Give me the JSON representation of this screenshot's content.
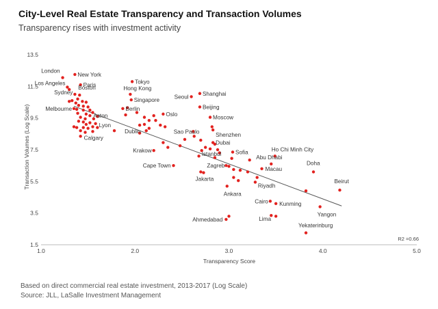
{
  "chart_data": {
    "type": "scatter",
    "title": "City-Level Real Estate Transparency and Transaction Volumes",
    "subtitle": "Transparency rises with investment activity",
    "xlabel": "Transparency Score",
    "ylabel": "Transaction Volumes (Log Scale)",
    "xlim": [
      1.0,
      5.0
    ],
    "ylim": [
      1.5,
      13.5
    ],
    "x_ticks": [
      "1.0",
      "2.0",
      "3.0",
      "4.0",
      "5.0"
    ],
    "y_ticks": [
      "1.5",
      "3.5",
      "5.5",
      "7.5",
      "9.5",
      "11.5",
      "13.5"
    ],
    "grid": false,
    "r2_label": "R2 =0.66",
    "trendline": {
      "x": [
        1.35,
        4.2
      ],
      "y": [
        10.25,
        3.95
      ]
    },
    "labeled_points": [
      {
        "name": "London",
        "x": 1.23,
        "y": 12.05
      },
      {
        "name": "New York",
        "x": 1.36,
        "y": 12.25
      },
      {
        "name": "Los Angeles",
        "x": 1.28,
        "y": 11.45
      },
      {
        "name": "Paris",
        "x": 1.42,
        "y": 11.6
      },
      {
        "name": "Sydney",
        "x": 1.36,
        "y": 11.0
      },
      {
        "name": "Boston",
        "x": 1.41,
        "y": 10.95
      },
      {
        "name": "Melbourne",
        "x": 1.35,
        "y": 10.1
      },
      {
        "name": "Aston",
        "x": 1.52,
        "y": 9.65
      },
      {
        "name": "Calgary",
        "x": 1.42,
        "y": 8.35
      },
      {
        "name": "Lyon",
        "x": 1.78,
        "y": 8.7
      },
      {
        "name": "Tokyo",
        "x": 1.97,
        "y": 11.8
      },
      {
        "name": "Hong Kong",
        "x": 1.95,
        "y": 11.0
      },
      {
        "name": "Singapore",
        "x": 1.96,
        "y": 10.65
      },
      {
        "name": "Berlin",
        "x": 1.87,
        "y": 10.1
      },
      {
        "name": "Dublin",
        "x": 2.05,
        "y": 9.05
      },
      {
        "name": "Oslo",
        "x": 2.3,
        "y": 9.75
      },
      {
        "name": "Seoul",
        "x": 2.6,
        "y": 10.85
      },
      {
        "name": "Shanghai",
        "x": 2.69,
        "y": 11.05
      },
      {
        "name": "Beijing",
        "x": 2.69,
        "y": 10.2
      },
      {
        "name": "Moscow",
        "x": 2.8,
        "y": 9.55
      },
      {
        "name": "Shenzhen",
        "x": 2.83,
        "y": 8.75
      },
      {
        "name": "Sao Paulo",
        "x": 2.63,
        "y": 8.35
      },
      {
        "name": "Dubai",
        "x": 2.83,
        "y": 7.95
      },
      {
        "name": "Krakow",
        "x": 2.2,
        "y": 7.45
      },
      {
        "name": "Istanbul",
        "x": 2.71,
        "y": 7.45
      },
      {
        "name": "Sofia",
        "x": 3.04,
        "y": 7.35
      },
      {
        "name": "Ho Chi Minh City",
        "x": 3.49,
        "y": 7.1
      },
      {
        "name": "Cape Town",
        "x": 2.41,
        "y": 6.5
      },
      {
        "name": "Zagreb",
        "x": 2.97,
        "y": 6.5
      },
      {
        "name": "Abu Dhabi",
        "x": 3.45,
        "y": 6.6
      },
      {
        "name": "Macau",
        "x": 3.35,
        "y": 6.3
      },
      {
        "name": "Doha",
        "x": 3.9,
        "y": 6.1
      },
      {
        "name": "Jakarta",
        "x": 2.73,
        "y": 6.05
      },
      {
        "name": "Riyadh",
        "x": 3.28,
        "y": 5.45
      },
      {
        "name": "Ankara",
        "x": 2.98,
        "y": 5.2
      },
      {
        "name": "Beirut",
        "x": 4.18,
        "y": 4.95
      },
      {
        "name": "Cairo",
        "x": 3.44,
        "y": 4.25
      },
      {
        "name": "Kunming",
        "x": 3.5,
        "y": 4.1
      },
      {
        "name": "Yangon",
        "x": 3.97,
        "y": 3.9
      },
      {
        "name": "Lima",
        "x": 3.45,
        "y": 3.35
      },
      {
        "name": "Ahmedabad",
        "x": 2.97,
        "y": 3.1
      },
      {
        "name": "Yekaterinburg",
        "x": 3.82,
        "y": 2.25
      }
    ],
    "other_points": [
      {
        "x": 1.3,
        "y": 11.3
      },
      {
        "x": 1.39,
        "y": 10.7
      },
      {
        "x": 1.44,
        "y": 10.55
      },
      {
        "x": 1.48,
        "y": 10.5
      },
      {
        "x": 1.33,
        "y": 10.6
      },
      {
        "x": 1.3,
        "y": 10.55
      },
      {
        "x": 1.37,
        "y": 10.45
      },
      {
        "x": 1.4,
        "y": 10.3
      },
      {
        "x": 1.45,
        "y": 10.25
      },
      {
        "x": 1.5,
        "y": 10.2
      },
      {
        "x": 1.38,
        "y": 10.05
      },
      {
        "x": 1.45,
        "y": 10.0
      },
      {
        "x": 1.52,
        "y": 10.0
      },
      {
        "x": 1.39,
        "y": 9.8
      },
      {
        "x": 1.48,
        "y": 9.75
      },
      {
        "x": 1.55,
        "y": 9.85
      },
      {
        "x": 1.6,
        "y": 9.6
      },
      {
        "x": 1.42,
        "y": 9.55
      },
      {
        "x": 1.47,
        "y": 9.45
      },
      {
        "x": 1.56,
        "y": 9.45
      },
      {
        "x": 1.4,
        "y": 9.3
      },
      {
        "x": 1.45,
        "y": 9.25
      },
      {
        "x": 1.52,
        "y": 9.2
      },
      {
        "x": 1.58,
        "y": 9.15
      },
      {
        "x": 1.48,
        "y": 9.1
      },
      {
        "x": 1.35,
        "y": 8.95
      },
      {
        "x": 1.38,
        "y": 8.9
      },
      {
        "x": 1.45,
        "y": 8.9
      },
      {
        "x": 1.5,
        "y": 8.85
      },
      {
        "x": 1.55,
        "y": 8.95
      },
      {
        "x": 1.6,
        "y": 8.9
      },
      {
        "x": 1.42,
        "y": 8.7
      },
      {
        "x": 1.47,
        "y": 8.6
      },
      {
        "x": 1.55,
        "y": 8.65
      },
      {
        "x": 1.92,
        "y": 10.15
      },
      {
        "x": 1.9,
        "y": 9.7
      },
      {
        "x": 2.02,
        "y": 9.85
      },
      {
        "x": 2.1,
        "y": 9.55
      },
      {
        "x": 2.15,
        "y": 9.35
      },
      {
        "x": 2.1,
        "y": 9.1
      },
      {
        "x": 2.2,
        "y": 9.65
      },
      {
        "x": 2.22,
        "y": 9.35
      },
      {
        "x": 2.27,
        "y": 9.05
      },
      {
        "x": 2.32,
        "y": 8.95
      },
      {
        "x": 2.15,
        "y": 8.85
      },
      {
        "x": 2.12,
        "y": 8.7
      },
      {
        "x": 2.05,
        "y": 8.55
      },
      {
        "x": 2.3,
        "y": 7.95
      },
      {
        "x": 2.35,
        "y": 7.65
      },
      {
        "x": 2.48,
        "y": 7.75
      },
      {
        "x": 2.53,
        "y": 8.15
      },
      {
        "x": 2.62,
        "y": 8.65
      },
      {
        "x": 2.7,
        "y": 8.1
      },
      {
        "x": 2.82,
        "y": 8.95
      },
      {
        "x": 2.85,
        "y": 7.85
      },
      {
        "x": 2.75,
        "y": 7.65
      },
      {
        "x": 2.8,
        "y": 7.55
      },
      {
        "x": 2.88,
        "y": 7.5
      },
      {
        "x": 2.9,
        "y": 7.3
      },
      {
        "x": 2.85,
        "y": 7.0
      },
      {
        "x": 3.03,
        "y": 6.95
      },
      {
        "x": 2.68,
        "y": 7.1
      },
      {
        "x": 3.0,
        "y": 6.45
      },
      {
        "x": 3.05,
        "y": 6.25
      },
      {
        "x": 3.12,
        "y": 6.2
      },
      {
        "x": 3.22,
        "y": 6.85
      },
      {
        "x": 3.3,
        "y": 5.75
      },
      {
        "x": 3.2,
        "y": 6.1
      },
      {
        "x": 2.7,
        "y": 6.1
      },
      {
        "x": 3.05,
        "y": 5.75
      },
      {
        "x": 3.1,
        "y": 5.55
      },
      {
        "x": 3.82,
        "y": 4.9
      },
      {
        "x": 3.0,
        "y": 3.3
      },
      {
        "x": 3.5,
        "y": 3.3
      }
    ]
  },
  "footnote": {
    "line1": "Based on direct commercial real estate investment, 2013-2017 (Log Scale)",
    "line2": "Source: JLL, LaSalle Investment Management"
  },
  "colors": {
    "point": "#e2221f",
    "trend": "#555555",
    "axis": "#bbbbbb"
  }
}
